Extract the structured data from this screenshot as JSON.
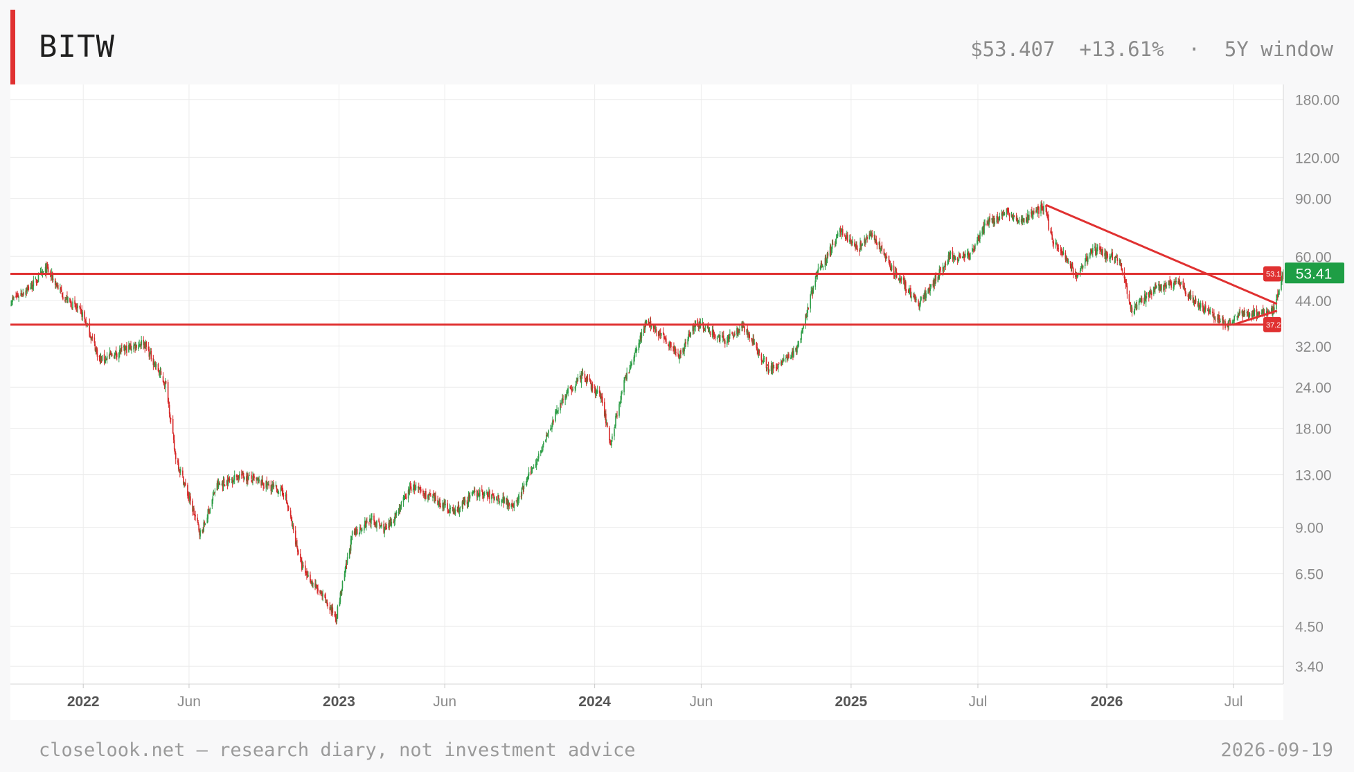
{
  "header": {
    "ticker": "BITW",
    "price": "$53.407",
    "change": "+13.61%",
    "separator": "·",
    "window": "5Y window"
  },
  "footer": {
    "note": "closelook.net — research diary, not investment advice",
    "date": "2026-09-19"
  },
  "colors": {
    "up": "#2e9e48",
    "down": "#d62828",
    "line": "#e03131",
    "grid": "#ececec",
    "last_badge": "#1e9e45"
  },
  "chart_data": {
    "type": "candlestick",
    "y_scale": "log",
    "ylim": [
      3.0,
      200
    ],
    "y_ticks": [
      {
        "value": 180,
        "label": "180.00"
      },
      {
        "value": 120,
        "label": "120.00"
      },
      {
        "value": 90,
        "label": "90.00"
      },
      {
        "value": 60,
        "label": "60.00"
      },
      {
        "value": 44,
        "label": "44.00"
      },
      {
        "value": 32,
        "label": "32.00"
      },
      {
        "value": 24,
        "label": "24.00"
      },
      {
        "value": 18,
        "label": "18.00"
      },
      {
        "value": 13,
        "label": "13.00"
      },
      {
        "value": 9,
        "label": "9.00"
      },
      {
        "value": 6.5,
        "label": "6.50"
      },
      {
        "value": 4.5,
        "label": "4.50"
      },
      {
        "value": 3.4,
        "label": "3.40"
      }
    ],
    "x_range": [
      "2021-09-19",
      "2026-09-10"
    ],
    "x_ticks": [
      {
        "date": "2022-01-01",
        "label": "2022",
        "bold": true
      },
      {
        "date": "2022-06-01",
        "label": "Jun",
        "bold": false
      },
      {
        "date": "2023-01-01",
        "label": "2023",
        "bold": true
      },
      {
        "date": "2023-06-01",
        "label": "Jun",
        "bold": false
      },
      {
        "date": "2024-01-01",
        "label": "2024",
        "bold": true
      },
      {
        "date": "2024-06-01",
        "label": "Jun",
        "bold": false
      },
      {
        "date": "2025-01-01",
        "label": "2025",
        "bold": true
      },
      {
        "date": "2025-07-01",
        "label": "Jul",
        "bold": false
      },
      {
        "date": "2026-01-01",
        "label": "2026",
        "bold": true
      },
      {
        "date": "2026-07-01",
        "label": "Jul",
        "bold": false
      }
    ],
    "price_path": [
      [
        "2021-09-20",
        44
      ],
      [
        "2021-10-20",
        49
      ],
      [
        "2021-11-10",
        55
      ],
      [
        "2021-12-05",
        45
      ],
      [
        "2021-12-31",
        40
      ],
      [
        "2022-01-25",
        29
      ],
      [
        "2022-03-28",
        33
      ],
      [
        "2022-04-30",
        24
      ],
      [
        "2022-05-12",
        15
      ],
      [
        "2022-06-18",
        8.5
      ],
      [
        "2022-07-10",
        12
      ],
      [
        "2022-08-14",
        13
      ],
      [
        "2022-10-15",
        11.5
      ],
      [
        "2022-11-09",
        6.8
      ],
      [
        "2022-12-28",
        4.8
      ],
      [
        "2023-01-20",
        8.5
      ],
      [
        "2023-02-15",
        9.5
      ],
      [
        "2023-03-10",
        8.8
      ],
      [
        "2023-04-15",
        12
      ],
      [
        "2023-06-15",
        10
      ],
      [
        "2023-07-15",
        11.5
      ],
      [
        "2023-08-20",
        11
      ],
      [
        "2023-09-10",
        10.5
      ],
      [
        "2023-10-25",
        17
      ],
      [
        "2023-11-15",
        22
      ],
      [
        "2023-12-15",
        26
      ],
      [
        "2024-01-12",
        22
      ],
      [
        "2024-01-23",
        16
      ],
      [
        "2024-02-10",
        24
      ],
      [
        "2024-03-14",
        38
      ],
      [
        "2024-04-15",
        33
      ],
      [
        "2024-05-01",
        30
      ],
      [
        "2024-05-25",
        38
      ],
      [
        "2024-07-05",
        33
      ],
      [
        "2024-07-30",
        37
      ],
      [
        "2024-09-07",
        27
      ],
      [
        "2024-10-15",
        31
      ],
      [
        "2024-11-12",
        52
      ],
      [
        "2024-12-17",
        72
      ],
      [
        "2025-01-10",
        63
      ],
      [
        "2025-02-01",
        70
      ],
      [
        "2025-02-28",
        55
      ],
      [
        "2025-04-08",
        43
      ],
      [
        "2025-05-22",
        60
      ],
      [
        "2025-06-20",
        60
      ],
      [
        "2025-07-14",
        76
      ],
      [
        "2025-08-14",
        82
      ],
      [
        "2025-09-01",
        76
      ],
      [
        "2025-10-06",
        86
      ],
      [
        "2025-10-11",
        70
      ],
      [
        "2025-11-21",
        52
      ],
      [
        "2025-12-10",
        63
      ],
      [
        "2026-01-05",
        60
      ],
      [
        "2026-01-20",
        58
      ],
      [
        "2026-02-05",
        41
      ],
      [
        "2026-03-10",
        48
      ],
      [
        "2026-04-15",
        50
      ],
      [
        "2026-05-05",
        44
      ],
      [
        "2026-06-01",
        40
      ],
      [
        "2026-06-20",
        37
      ],
      [
        "2026-07-10",
        40
      ],
      [
        "2026-08-25",
        41
      ],
      [
        "2026-09-01",
        45
      ],
      [
        "2026-09-10",
        53.41
      ]
    ],
    "annotations": {
      "horizontal_lines": [
        {
          "value": 53.1,
          "label": "53.1"
        },
        {
          "value": 37.2,
          "label": "37.2"
        }
      ],
      "trendlines": [
        {
          "from": [
            "2025-10-06",
            86
          ],
          "to": [
            "2026-09-01",
            43
          ]
        },
        {
          "from": [
            "2026-07-01",
            37.2
          ],
          "to": [
            "2026-09-01",
            41
          ]
        }
      ],
      "last_price_label": "53.41"
    }
  }
}
